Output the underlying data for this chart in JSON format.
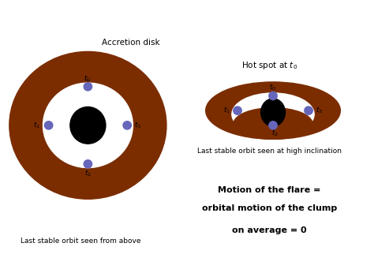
{
  "bg_color": "#ffffff",
  "disk_color": "#7B2D00",
  "inner_disk_color": "#ffffff",
  "black_hole_color": "#000000",
  "hot_spot_color": "#6666bb",
  "fig_width": 4.74,
  "fig_height": 3.27,
  "label_accretion_disk": "Accretion disk",
  "label_left_bottom": "Last stable orbit seen from above",
  "label_right_top": "Hot spot at $t_0$",
  "label_right_bottom": "Last stable orbit seen at high inclination",
  "label_motion1": "Motion of the flare =",
  "label_motion2": "orbital motion of the clump",
  "label_motion3": "on average = 0",
  "t0": "$t_0$",
  "t1": "$t_1$",
  "t2": "$t_2$",
  "t3": "$t_3$"
}
